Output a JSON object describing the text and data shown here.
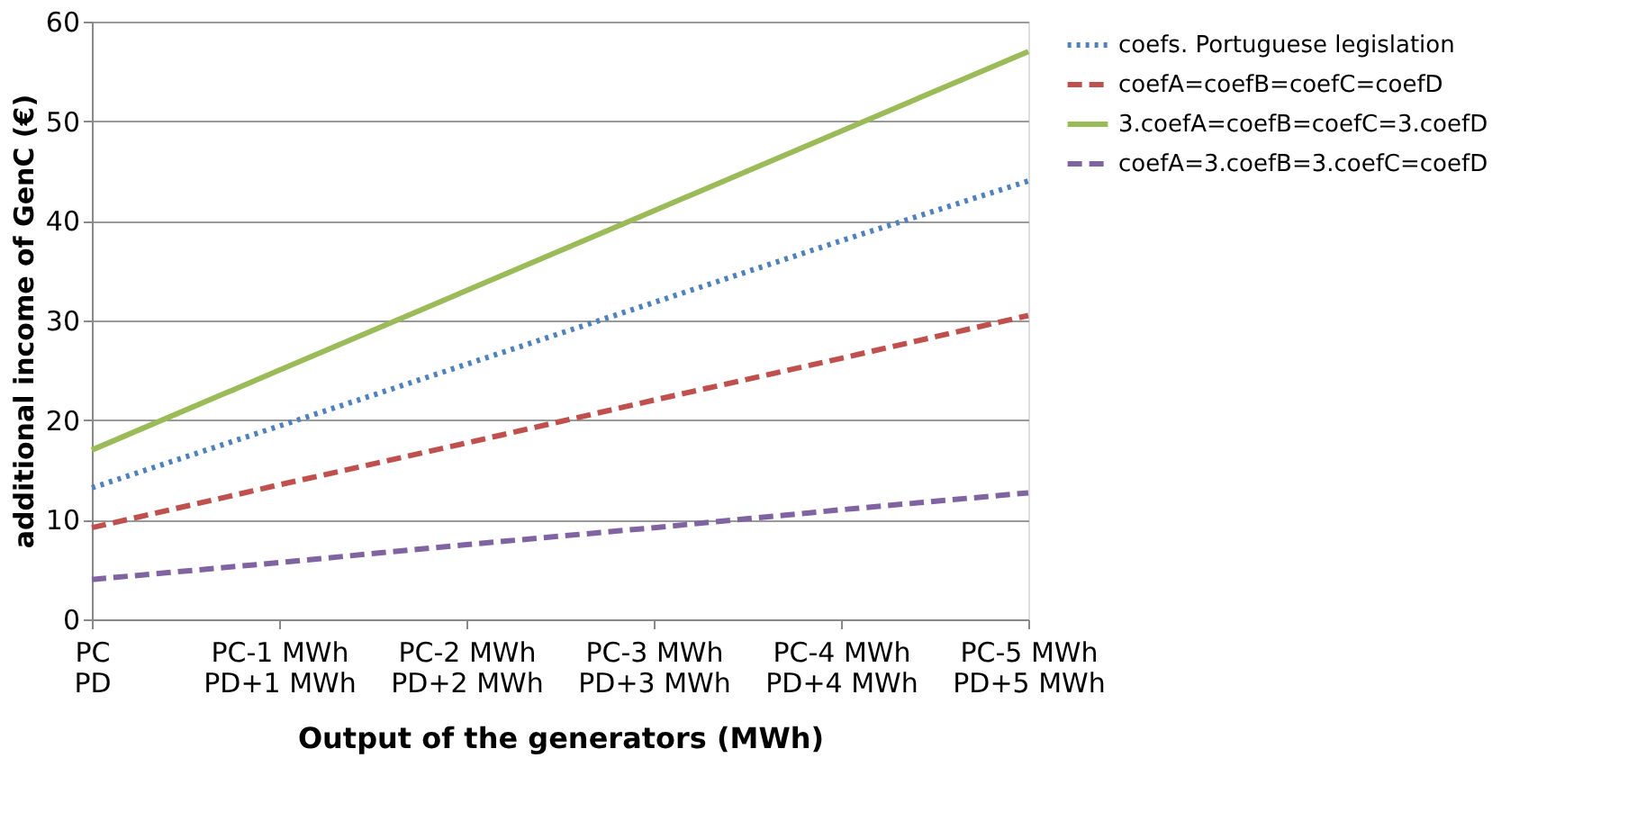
{
  "chart_data": {
    "type": "line",
    "xlabel": "Output of the generators (MWh)",
    "ylabel": "additional income of GenC (€)",
    "categories": [
      "PC\nPD",
      "PC-1 MWh\nPD+1 MWh",
      "PC-2 MWh\nPD+2 MWh",
      "PC-3 MWh\nPD+3 MWh",
      "PC-4 MWh\nPD+4 MWh",
      "PC-5 MWh\nPD+5 MWh"
    ],
    "series": [
      {
        "name": "coefs. Portuguese legislation",
        "color": "#4f81bd",
        "line_style": "dotted",
        "values": [
          13.2,
          19.4,
          25.6,
          31.8,
          38,
          44
        ]
      },
      {
        "name": "coefA=coefB=coefC=coefD",
        "color": "#c0504d",
        "line_style": "dashed",
        "values": [
          9.2,
          13.5,
          17.7,
          22,
          26.2,
          30.5
        ]
      },
      {
        "name": "3.coefA=coefB=coefC=3.coefD",
        "color": "#9bbb59",
        "line_style": "solid",
        "values": [
          17,
          25,
          33,
          41,
          49,
          57
        ]
      },
      {
        "name": "coefA=3.coefB=3.coefC=coefD",
        "color": "#8064a2",
        "line_style": "dashed",
        "values": [
          4,
          5.7,
          7.5,
          9.2,
          11,
          12.7
        ]
      }
    ],
    "ylim": [
      0,
      60
    ],
    "yticks": [
      0,
      10,
      20,
      30,
      40,
      50,
      60
    ],
    "grid": "y",
    "legend": "right",
    "marker": "none"
  }
}
